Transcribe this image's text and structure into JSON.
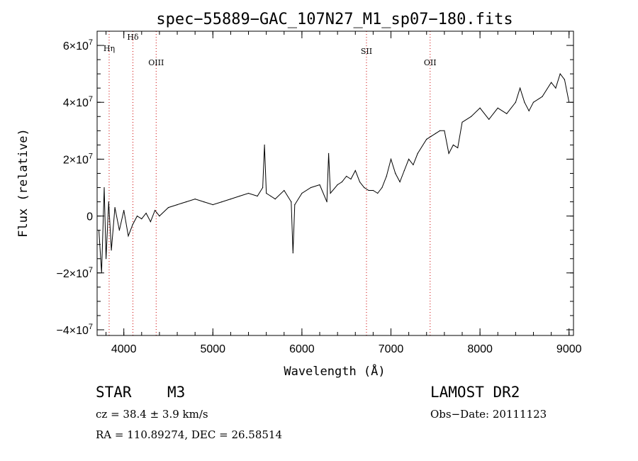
{
  "chart_data": {
    "type": "line",
    "title": "spec−55889−GAC_107N27_M1_sp07−180.fits",
    "xlabel": "Wavelength (Å)",
    "ylabel": "Flux (relative)",
    "xlim": [
      3700,
      9050
    ],
    "ylim": [
      -42000000,
      65000000
    ],
    "x_ticks": [
      {
        "value": 4000,
        "label": "4000"
      },
      {
        "value": 5000,
        "label": "5000"
      },
      {
        "value": 6000,
        "label": "6000"
      },
      {
        "value": 7000,
        "label": "7000"
      },
      {
        "value": 8000,
        "label": "8000"
      },
      {
        "value": 9000,
        "label": "9000"
      }
    ],
    "y_ticks": [
      {
        "value": -40000000,
        "label": "−4×10",
        "exp": "7"
      },
      {
        "value": -20000000,
        "label": "−2×10",
        "exp": "7"
      },
      {
        "value": 0,
        "label": "0",
        "exp": ""
      },
      {
        "value": 20000000,
        "label": "2×10",
        "exp": "7"
      },
      {
        "value": 40000000,
        "label": "4×10",
        "exp": "7"
      },
      {
        "value": 60000000,
        "label": "6×10",
        "exp": "7"
      }
    ],
    "lines": [
      {
        "label": "Hη",
        "x": 3835,
        "label_y": 58000000
      },
      {
        "label": "Hδ",
        "x": 4102,
        "label_y": 62000000
      },
      {
        "label": "OIII",
        "x": 4363,
        "label_y": 53000000
      },
      {
        "label": "SII",
        "x": 6725,
        "label_y": 57000000
      },
      {
        "label": "OII",
        "x": 7440,
        "label_y": 53000000
      }
    ],
    "line_color": "#cc0000",
    "series": [
      {
        "x": [
          3720,
          3750,
          3780,
          3800,
          3830,
          3860,
          3900,
          3950,
          4000,
          4050,
          4100,
          4150,
          4200,
          4250,
          4300,
          4350,
          4400,
          4500,
          4600,
          4700,
          4800,
          4900,
          5000,
          5100,
          5200,
          5300,
          5400,
          5500,
          5560,
          5580,
          5600,
          5650,
          5700,
          5800,
          5880,
          5900,
          5920,
          6000,
          6100,
          6200,
          6280,
          6300,
          6320,
          6400,
          6450,
          6500,
          6550,
          6600,
          6650,
          6700,
          6750,
          6800,
          6850,
          6900,
          6950,
          7000,
          7050,
          7100,
          7150,
          7200,
          7250,
          7300,
          7400,
          7450,
          7500,
          7550,
          7600,
          7650,
          7700,
          7750,
          7800,
          7900,
          8000,
          8100,
          8200,
          8300,
          8400,
          8450,
          8500,
          8550,
          8600,
          8700,
          8800,
          8850,
          8900,
          8950,
          9000
        ],
        "y": [
          -5000000,
          -20000000,
          10000000,
          -15000000,
          5000000,
          -12000000,
          3000000,
          -5000000,
          2000000,
          -7000000,
          -3000000,
          0,
          -1000000,
          1000000,
          -2000000,
          2000000,
          0,
          3000000,
          4000000,
          5000000,
          6000000,
          5000000,
          4000000,
          5000000,
          6000000,
          7000000,
          8000000,
          7000000,
          10000000,
          25000000,
          8000000,
          7000000,
          6000000,
          9000000,
          5000000,
          -13000000,
          4000000,
          8000000,
          10000000,
          11000000,
          5000000,
          22000000,
          8000000,
          11000000,
          12000000,
          14000000,
          13000000,
          16000000,
          12000000,
          10000000,
          9000000,
          9000000,
          8000000,
          10000000,
          14000000,
          20000000,
          15000000,
          12000000,
          16000000,
          20000000,
          18000000,
          22000000,
          27000000,
          28000000,
          29000000,
          30000000,
          30000000,
          22000000,
          25000000,
          24000000,
          33000000,
          35000000,
          38000000,
          34000000,
          38000000,
          36000000,
          40000000,
          45000000,
          40000000,
          37000000,
          40000000,
          42000000,
          47000000,
          45000000,
          50000000,
          48000000,
          40000000
        ]
      }
    ]
  },
  "info": {
    "object_class": "STAR",
    "subclass": "M3",
    "redshift": "cz = 38.4 ± 3.9 km/s",
    "coords": "RA = 110.89274, DEC =  26.58514",
    "survey": "LAMOST DR2",
    "obs_date": "Obs−Date: 20111123"
  }
}
